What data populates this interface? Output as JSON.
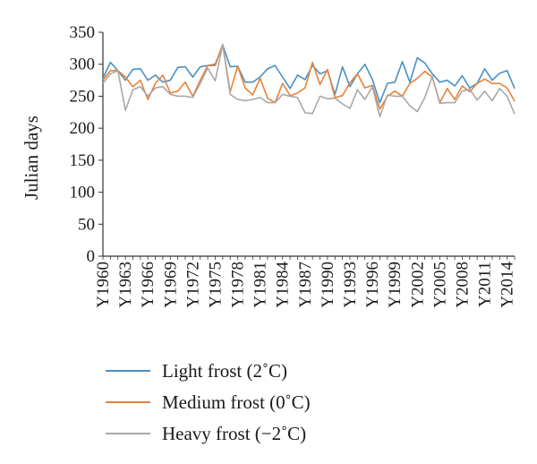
{
  "chart_data": {
    "type": "line",
    "title": "",
    "xlabel": "",
    "ylabel": "Julian days",
    "ylim": [
      0,
      350
    ],
    "yticks": [
      0,
      50,
      100,
      150,
      200,
      250,
      300,
      350
    ],
    "grid": false,
    "legend_position": "bottom",
    "x": [
      1960,
      1961,
      1962,
      1963,
      1964,
      1965,
      1966,
      1967,
      1968,
      1969,
      1970,
      1971,
      1972,
      1973,
      1974,
      1975,
      1976,
      1977,
      1978,
      1979,
      1980,
      1981,
      1982,
      1983,
      1984,
      1985,
      1986,
      1987,
      1988,
      1989,
      1990,
      1991,
      1992,
      1993,
      1994,
      1995,
      1996,
      1997,
      1998,
      1999,
      2000,
      2001,
      2002,
      2003,
      2004,
      2005,
      2006,
      2007,
      2008,
      2009,
      2010,
      2011,
      2012,
      2013,
      2014,
      2015
    ],
    "xtick_labels": [
      "Y1960",
      "Y1963",
      "Y1966",
      "Y1969",
      "Y1972",
      "Y1975",
      "Y1978",
      "Y1981",
      "Y1984",
      "Y1987",
      "Y1990",
      "Y1993",
      "Y1996",
      "Y1999",
      "Y2002",
      "Y2005",
      "Y2008",
      "Y2011",
      "Y2014"
    ],
    "xtick_years": [
      1960,
      1963,
      1966,
      1969,
      1972,
      1975,
      1978,
      1981,
      1984,
      1987,
      1990,
      1993,
      1996,
      1999,
      2002,
      2005,
      2008,
      2011,
      2014
    ],
    "series": [
      {
        "name": "Light frost (2˚C)",
        "color": "#4a90c4",
        "values": [
          278,
          303,
          290,
          275,
          292,
          293,
          275,
          283,
          272,
          275,
          295,
          296,
          280,
          296,
          298,
          300,
          330,
          296,
          297,
          272,
          272,
          280,
          293,
          298,
          280,
          262,
          283,
          276,
          298,
          285,
          290,
          253,
          296,
          265,
          285,
          300,
          276,
          240,
          270,
          272,
          304,
          272,
          310,
          302,
          285,
          272,
          275,
          266,
          282,
          263,
          270,
          293,
          275,
          286,
          290,
          262
        ]
      },
      {
        "name": "Medium frost (0˚C)",
        "color": "#e8823a",
        "values": [
          275,
          290,
          290,
          280,
          265,
          275,
          245,
          270,
          283,
          255,
          258,
          272,
          250,
          275,
          298,
          298,
          331,
          257,
          297,
          263,
          252,
          278,
          247,
          240,
          270,
          251,
          255,
          263,
          303,
          268,
          292,
          248,
          251,
          271,
          285,
          263,
          267,
          230,
          250,
          258,
          250,
          270,
          278,
          289,
          280,
          240,
          262,
          245,
          266,
          257,
          270,
          277,
          270,
          270,
          263,
          242
        ]
      },
      {
        "name": "Heavy frost (−2˚C)",
        "color": "#a8a8a8",
        "values": [
          270,
          285,
          290,
          228,
          260,
          265,
          250,
          263,
          265,
          253,
          250,
          250,
          248,
          270,
          294,
          274,
          331,
          253,
          245,
          243,
          245,
          248,
          240,
          240,
          253,
          250,
          248,
          224,
          223,
          250,
          246,
          247,
          238,
          231,
          260,
          245,
          265,
          218,
          252,
          250,
          250,
          235,
          226,
          248,
          281,
          239,
          240,
          240,
          258,
          261,
          244,
          258,
          243,
          262,
          250,
          222
        ]
      }
    ]
  }
}
